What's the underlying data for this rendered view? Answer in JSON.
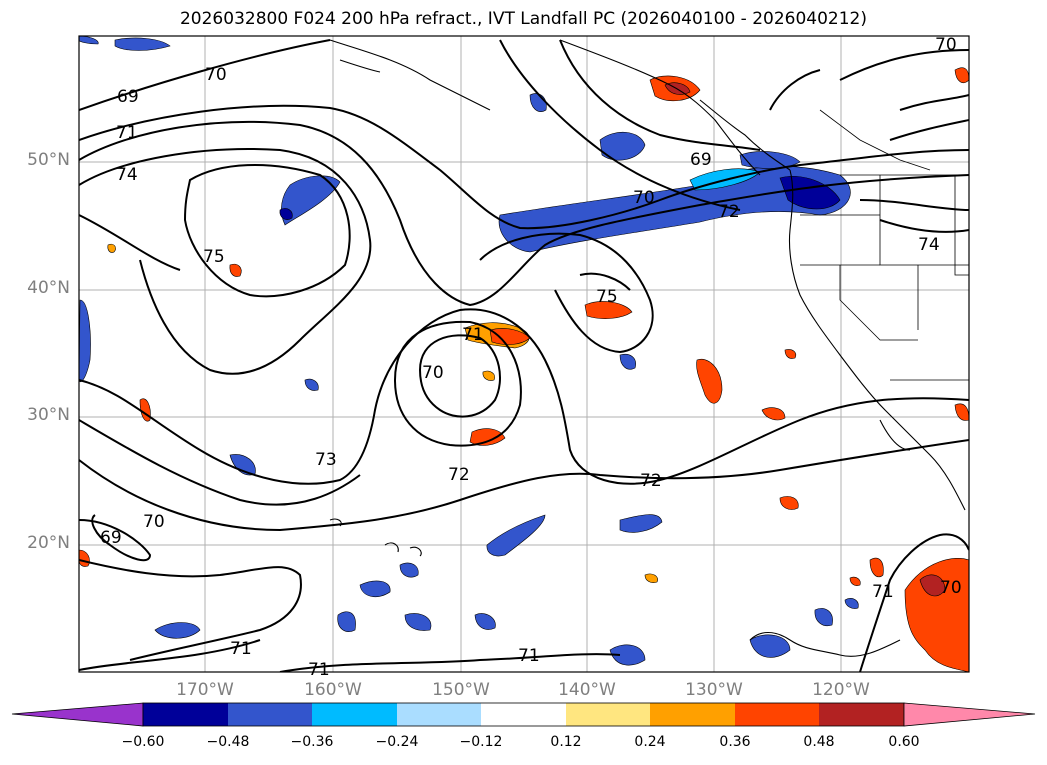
{
  "title": "2026032800 F024 200 hPa refract., IVT Landfall PC (2026040100 - 2026040212)",
  "latitude_labels": [
    "50°N",
    "40°N",
    "30°N",
    "20°N"
  ],
  "longitude_labels": [
    "170°W",
    "160°W",
    "150°W",
    "140°W",
    "130°W",
    "120°W"
  ],
  "contour_labels": [
    "69",
    "70",
    "71",
    "74",
    "75",
    "70",
    "71",
    "73",
    "72",
    "72",
    "70",
    "69",
    "70",
    "72",
    "74",
    "75",
    "69",
    "70",
    "71",
    "71",
    "71",
    "71",
    "70"
  ],
  "colorbar": {
    "ticks": [
      "−0.60",
      "−0.48",
      "−0.36",
      "−0.24",
      "−0.12",
      "0.12",
      "0.24",
      "0.36",
      "0.48",
      "0.60"
    ],
    "colors": [
      "#9933cc",
      "#000099",
      "#3355cc",
      "#00bbff",
      "#aaddff",
      "#ffffff",
      "#ffe680",
      "#ffa000",
      "#ff4400",
      "#b22222",
      "#ff88aa"
    ]
  }
}
